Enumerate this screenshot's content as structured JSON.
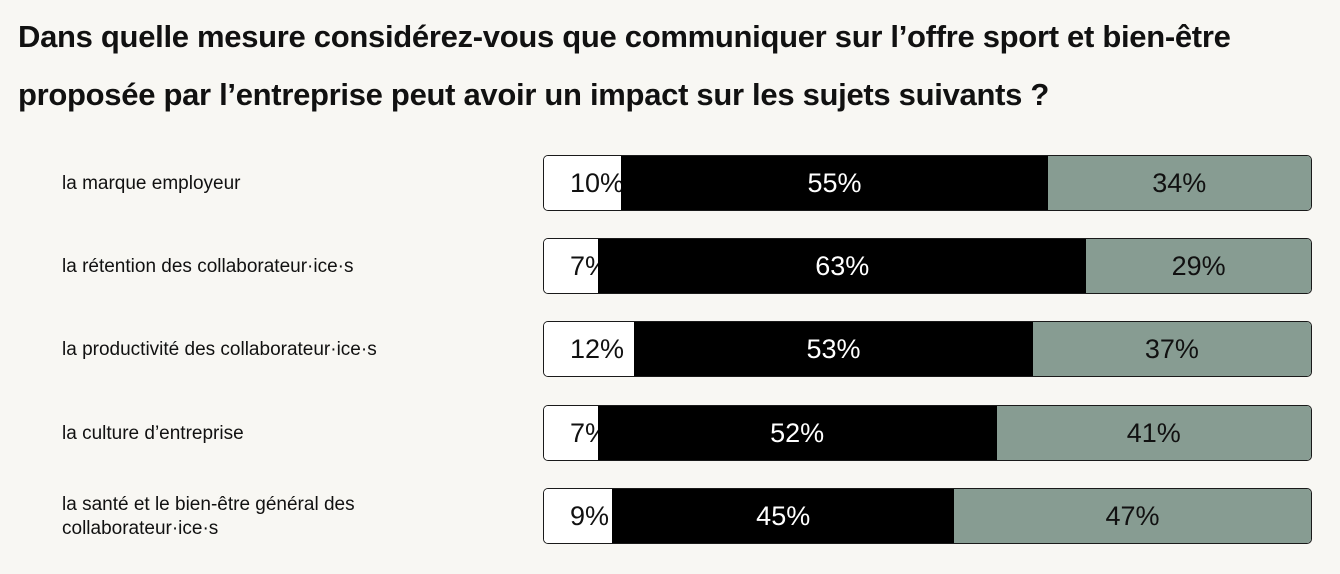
{
  "title": "Dans quelle mesure considérez-vous que communiquer sur l’offre sport et bien-être proposée par l’entreprise peut avoir un impact sur les sujets suivants ?",
  "colors": {
    "segment_1": "#ffffff",
    "segment_2": "#000000",
    "segment_3": "#879c92"
  },
  "chart_data": {
    "type": "bar",
    "orientation": "horizontal",
    "stacked": true,
    "categories": [
      "la marque employeur",
      "la rétention des collaborateur·ice·s",
      "la productivité des collaborateur·ice·s",
      "la culture d’entreprise",
      "la santé et le bien-être général des collaborateur·ice·s"
    ],
    "series": [
      {
        "values": [
          10,
          7,
          12,
          7,
          9
        ],
        "labels": [
          "10%",
          "7%",
          "12%",
          "7%",
          "9%"
        ]
      },
      {
        "values": [
          55,
          63,
          53,
          52,
          45
        ],
        "labels": [
          "55%",
          "63%",
          "53%",
          "52%",
          "45%"
        ]
      },
      {
        "values": [
          34,
          29,
          37,
          41,
          47
        ],
        "labels": [
          "34%",
          "29%",
          "37%",
          "41%",
          "47%"
        ]
      }
    ],
    "value_unit": "%"
  }
}
